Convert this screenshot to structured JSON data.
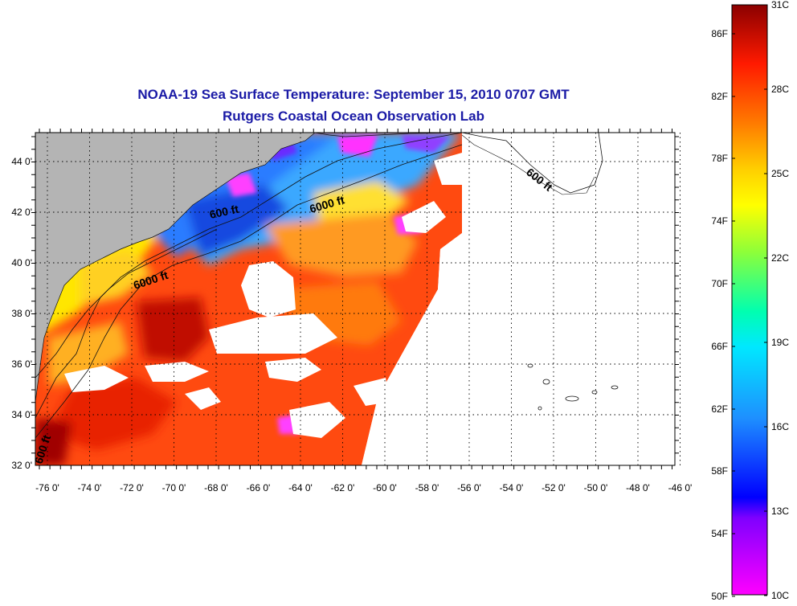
{
  "map": {
    "title": "NOAA-19 Sea Surface Temperature:  September 15, 2010 0707 GMT",
    "subtitle": "Rutgers Coastal Ocean Observation Lab",
    "longitude_labels": [
      "-76 0'",
      "-74 0'",
      "-72 0'",
      "-70 0'",
      "-68 0'",
      "-66 0'",
      "-64 0'",
      "-62 0'",
      "-60 0'",
      "-58 0'",
      "-56 0'",
      "-54 0'",
      "-52 0'",
      "-50 0'",
      "-48 0'",
      "-46 0'"
    ],
    "latitude_labels": [
      "44 0'",
      "42 0'",
      "40 0'",
      "38 0'",
      "36 0'",
      "34 0'",
      "32 0'"
    ],
    "contour_labels": [
      "600 ft",
      "6000 ft",
      "6000 ft",
      "600 ft",
      "600 ft"
    ],
    "land_color": "#b4b4b4",
    "cloud_color": "#ffffff"
  },
  "colorbar": {
    "fahrenheit_labels": [
      "86F",
      "82F",
      "78F",
      "74F",
      "70F",
      "66F",
      "62F",
      "58F",
      "54F",
      "50F"
    ],
    "celsius_labels": [
      "31C",
      "28C",
      "25C",
      "22C",
      "19C",
      "16C",
      "13C",
      "10C"
    ],
    "colors": [
      "#8b0000",
      "#ff1a00",
      "#ff7a00",
      "#ffd000",
      "#ffff00",
      "#8cff3a",
      "#00ffb0",
      "#00e8ff",
      "#1e90ff",
      "#0000ff",
      "#7f00ff",
      "#ff00ff"
    ]
  }
}
